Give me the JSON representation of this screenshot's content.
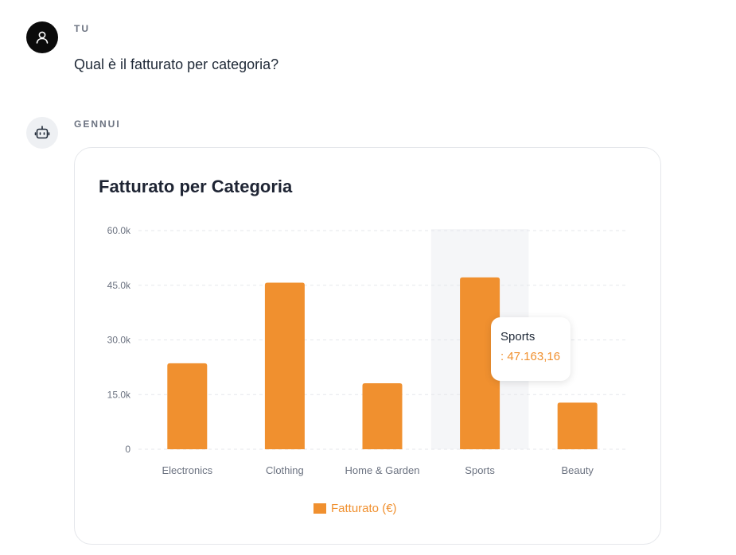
{
  "user": {
    "role_label": "TU",
    "message": "Qual è il fatturato per categoria?",
    "avatar_icon": "user-icon"
  },
  "assistant": {
    "role_label": "GENNUI",
    "avatar_icon": "robot-icon"
  },
  "chart_data": {
    "type": "bar",
    "title": "Fatturato per Categoria",
    "categories": [
      "Electronics",
      "Clothing",
      "Home & Garden",
      "Sports",
      "Beauty"
    ],
    "series": [
      {
        "name": "Fatturato (€)",
        "values": [
          23600,
          45700,
          18100,
          47163.16,
          12800
        ],
        "color": "#f0902f"
      }
    ],
    "ylim": [
      0,
      60000
    ],
    "yticks": [
      {
        "value": 0,
        "label": "0"
      },
      {
        "value": 15000,
        "label": "15.0k"
      },
      {
        "value": 30000,
        "label": "30.0k"
      },
      {
        "value": 45000,
        "label": "45.0k"
      },
      {
        "value": 60000,
        "label": "60.0k"
      }
    ],
    "grid": true,
    "legend": "bottom",
    "highlighted_category": "Sports",
    "tooltip": {
      "title": "Sports",
      "value": ": 47.163,16"
    }
  }
}
